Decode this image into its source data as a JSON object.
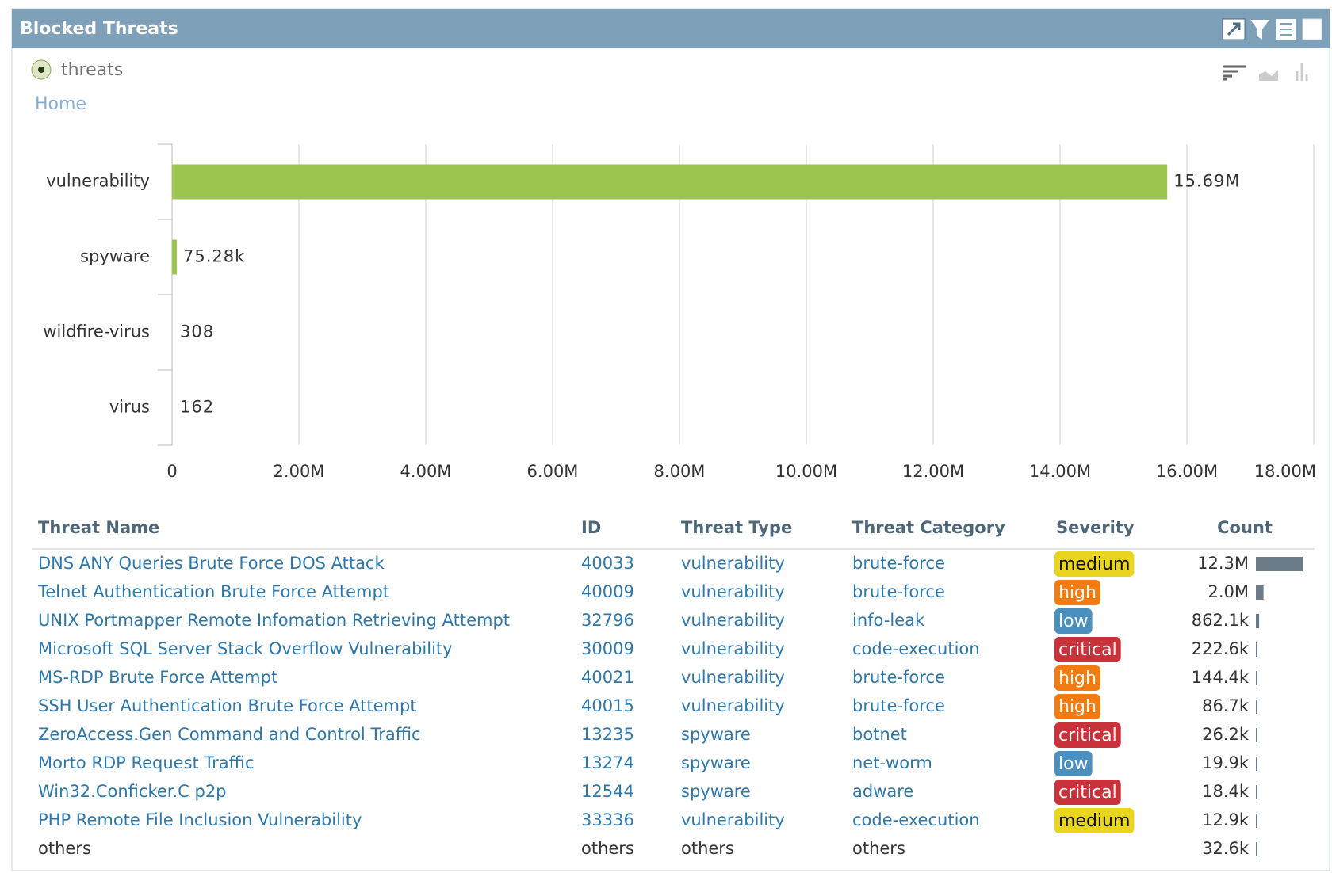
{
  "panel": {
    "title": "Blocked Threats",
    "radio_label": "threats",
    "breadcrumb": "Home"
  },
  "chart_data": {
    "type": "bar",
    "orientation": "horizontal",
    "categories": [
      "vulnerability",
      "spyware",
      "wildfire-virus",
      "virus"
    ],
    "values": [
      15690000,
      75280,
      308,
      162
    ],
    "value_labels": [
      "15.69M",
      "75.28k",
      "308",
      "162"
    ],
    "color": "#9cc550",
    "xlim": [
      0,
      18000000
    ],
    "xticks": [
      0,
      {
        "value": 2000000,
        "label": "2.00M"
      },
      {
        "value": 4000000,
        "label": "4.00M"
      },
      {
        "value": 6000000,
        "label": "6.00M"
      },
      {
        "value": 8000000,
        "label": "8.00M"
      },
      {
        "value": 10000000,
        "label": "10.00M"
      },
      {
        "value": 12000000,
        "label": "12.00M"
      },
      {
        "value": 14000000,
        "label": "14.00M"
      },
      {
        "value": 16000000,
        "label": "16.00M"
      },
      {
        "value": 18000000,
        "label": "18.00M"
      }
    ],
    "grid": true
  },
  "table": {
    "headers": [
      "Threat Name",
      "ID",
      "Threat Type",
      "Threat Category",
      "Severity",
      "Count"
    ],
    "count_bar_color": "#6b7b88",
    "severity_styles": {
      "medium": {
        "fill": "#e9d41e",
        "text": "#111111"
      },
      "high": {
        "fill": "#f27c12",
        "text": "#ffffff"
      },
      "low": {
        "fill": "#4b8fbf",
        "text": "#ffffff"
      },
      "critical": {
        "fill": "#c9323a",
        "text": "#ffffff"
      }
    },
    "rows": [
      {
        "name": "DNS ANY Queries Brute Force DOS Attack",
        "id": "40033",
        "type": "vulnerability",
        "category": "brute-force",
        "severity": "medium",
        "count": 12300000,
        "count_label": "12.3M"
      },
      {
        "name": "Telnet Authentication Brute Force Attempt",
        "id": "40009",
        "type": "vulnerability",
        "category": "brute-force",
        "severity": "high",
        "count": 2000000,
        "count_label": "2.0M"
      },
      {
        "name": "UNIX Portmapper Remote Infomation Retrieving Attempt",
        "id": "32796",
        "type": "vulnerability",
        "category": "info-leak",
        "severity": "low",
        "count": 862100,
        "count_label": "862.1k"
      },
      {
        "name": "Microsoft SQL Server Stack Overflow Vulnerability",
        "id": "30009",
        "type": "vulnerability",
        "category": "code-execution",
        "severity": "critical",
        "count": 222600,
        "count_label": "222.6k"
      },
      {
        "name": "MS-RDP Brute Force Attempt",
        "id": "40021",
        "type": "vulnerability",
        "category": "brute-force",
        "severity": "high",
        "count": 144400,
        "count_label": "144.4k"
      },
      {
        "name": "SSH User Authentication Brute Force Attempt",
        "id": "40015",
        "type": "vulnerability",
        "category": "brute-force",
        "severity": "high",
        "count": 86700,
        "count_label": "86.7k"
      },
      {
        "name": "ZeroAccess.Gen Command and Control Traffic",
        "id": "13235",
        "type": "spyware",
        "category": "botnet",
        "severity": "critical",
        "count": 26200,
        "count_label": "26.2k"
      },
      {
        "name": "Morto RDP Request Traffic",
        "id": "13274",
        "type": "spyware",
        "category": "net-worm",
        "severity": "low",
        "count": 19900,
        "count_label": "19.9k"
      },
      {
        "name": "Win32.Conficker.C p2p",
        "id": "12544",
        "type": "spyware",
        "category": "adware",
        "severity": "critical",
        "count": 18400,
        "count_label": "18.4k"
      },
      {
        "name": "PHP Remote File Inclusion Vulnerability",
        "id": "33336",
        "type": "vulnerability",
        "category": "code-execution",
        "severity": "medium",
        "count": 12900,
        "count_label": "12.9k"
      },
      {
        "name": "others",
        "id": "others",
        "type": "others",
        "category": "others",
        "severity": null,
        "count": 32600,
        "count_label": "32.6k"
      }
    ]
  }
}
